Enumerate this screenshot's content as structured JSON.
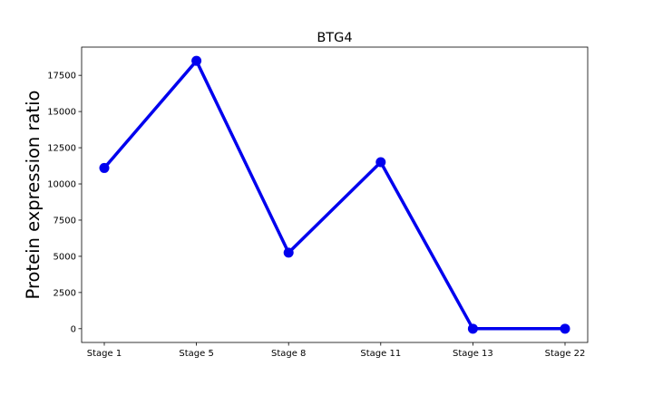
{
  "chart_data": {
    "type": "line",
    "title": "BTG4",
    "xlabel": "",
    "ylabel": "Protein expression ratio",
    "categories": [
      "Stage 1",
      "Stage 5",
      "Stage 8",
      "Stage 11",
      "Stage 13",
      "Stage 22"
    ],
    "series": [
      {
        "values": [
          11100,
          18500,
          5250,
          11500,
          0,
          0
        ],
        "color": "#0000ee",
        "marker": "circle"
      }
    ],
    "ylim": [
      -950,
      19450
    ],
    "yticks": [
      0,
      2500,
      5000,
      7500,
      10000,
      12500,
      15000,
      17500
    ],
    "ytick_labels": [
      "0",
      "2500",
      "5000",
      "7500",
      "10000",
      "12500",
      "15000",
      "17500"
    ],
    "grid": false,
    "legend": "none"
  }
}
